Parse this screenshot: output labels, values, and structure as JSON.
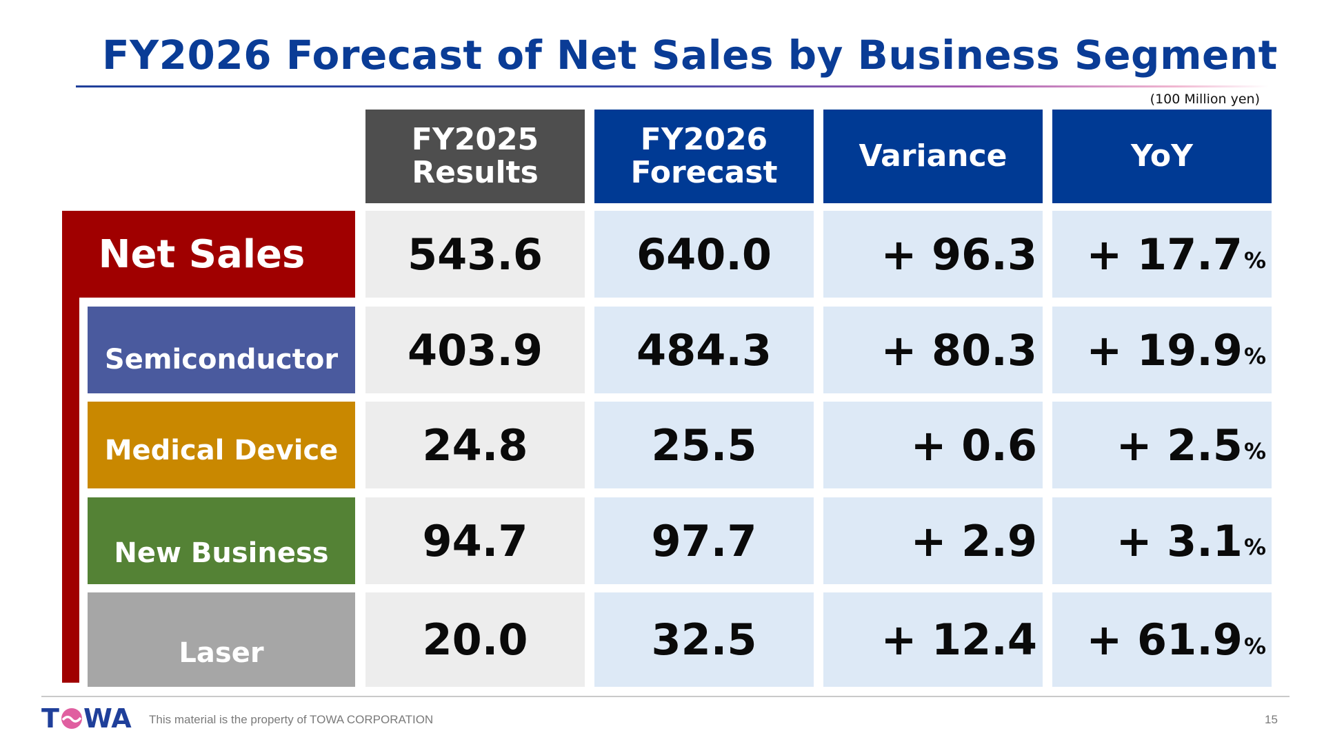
{
  "title": "FY2026 Forecast of Net Sales by Business Segment",
  "unit": "(100 Million yen)",
  "columns": [
    {
      "label": "FY2025\nResults"
    },
    {
      "label": "FY2026\nForecast"
    },
    {
      "label": "Variance"
    },
    {
      "label": "YoY"
    }
  ],
  "rows": [
    {
      "label": "Net Sales",
      "fy2025": "543.6",
      "fy2026": "640.0",
      "variance": "+ 96.3",
      "yoy": "+ 17.7",
      "pct": "%"
    },
    {
      "label": "Semiconductor",
      "fy2025": "403.9",
      "fy2026": "484.3",
      "variance": "+ 80.3",
      "yoy": "+ 19.9",
      "pct": "%"
    },
    {
      "label": "Medical Device",
      "fy2025": "24.8",
      "fy2026": "25.5",
      "variance": "+ 0.6",
      "yoy": "+ 2.5",
      "pct": "%"
    },
    {
      "label": "New Business",
      "fy2025": "94.7",
      "fy2026": "97.7",
      "variance": "+ 2.9",
      "yoy": "+ 3.1",
      "pct": "%"
    },
    {
      "label": "Laser",
      "fy2025": "20.0",
      "fy2026": "32.5",
      "variance": "+ 12.4",
      "yoy": "+ 61.9",
      "pct": "%"
    }
  ],
  "colors": {
    "title": "#0a3c96",
    "header_results": "#4e4e4e",
    "header_forecast": "#003a94",
    "net_sales": "#a00000",
    "semiconductor": "#4a5a9e",
    "medical_device": "#c98800",
    "new_business": "#548235",
    "laser": "#a6a6a6"
  },
  "footer": {
    "logo_text": "TOWA",
    "text": "This material is the property of TOWA CORPORATION",
    "page": "15"
  }
}
